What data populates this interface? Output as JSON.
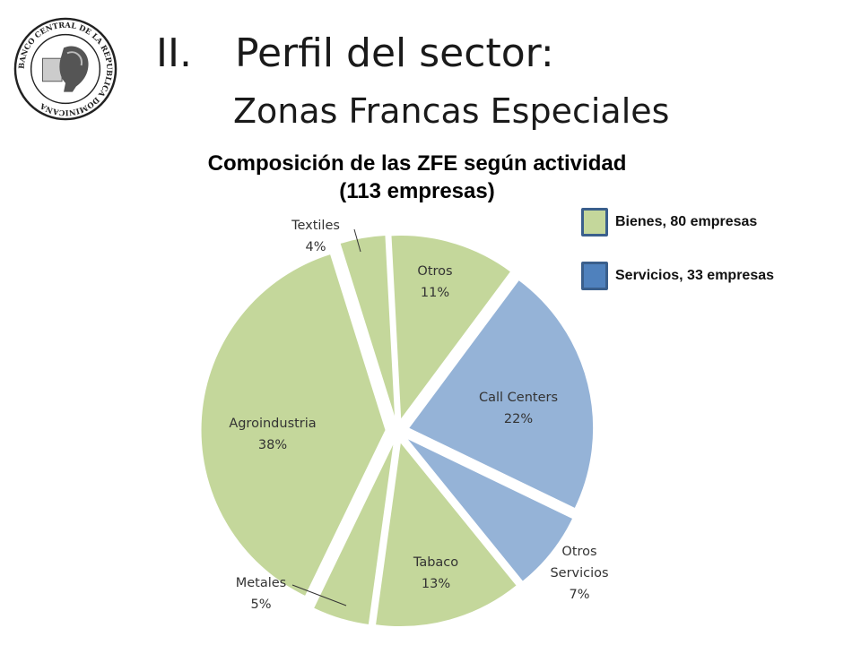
{
  "header": {
    "logo_text": "BANCO CENTRAL DE LA REPUBLICA DOMINICANA",
    "number": "II.",
    "title": "Perfil del sector:",
    "subtitle": "Zonas Francas Especiales"
  },
  "colors": {
    "bienes": "#c4d79b",
    "servicios": "#95b3d7",
    "bienes_swatch": "#c4d79b",
    "servicios_swatch": "#4f81bd"
  },
  "chart_data": {
    "type": "pie",
    "title": "Composición de las ZFE según actividad",
    "subtitle": "(113 empresas)",
    "legend": [
      {
        "label": "Bienes, 80 empresas",
        "group": "bienes"
      },
      {
        "label": "Servicios, 33 empresas",
        "group": "servicios"
      }
    ],
    "slices": [
      {
        "lines": [
          "Otros",
          "11%"
        ],
        "value": 11,
        "group": "bienes"
      },
      {
        "lines": [
          "Call Centers",
          "22%"
        ],
        "value": 22,
        "group": "servicios"
      },
      {
        "lines": [
          "Otros",
          "Servicios",
          "7%"
        ],
        "value": 7,
        "group": "servicios"
      },
      {
        "lines": [
          "Tabaco",
          "13%"
        ],
        "value": 13,
        "group": "bienes"
      },
      {
        "lines": [
          "Metales",
          "5%"
        ],
        "value": 5,
        "group": "bienes"
      },
      {
        "lines": [
          "Agroindustria",
          "38%"
        ],
        "value": 38,
        "group": "bienes"
      },
      {
        "lines": [
          "Textiles",
          "4%"
        ],
        "value": 4,
        "group": "bienes"
      }
    ]
  }
}
